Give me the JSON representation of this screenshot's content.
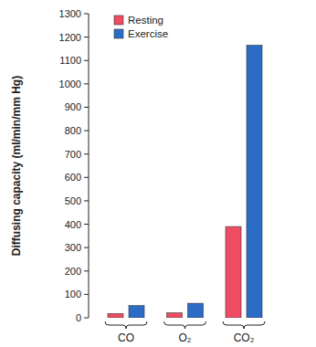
{
  "chart_data": {
    "type": "bar",
    "ylabel": "Diffusing capacity (ml/min/mm Hg)",
    "categories": [
      "CO",
      "O₂",
      "CO₂"
    ],
    "series": [
      {
        "name": "Resting",
        "color": "#ee4d63",
        "values": [
          18,
          21,
          390
        ]
      },
      {
        "name": "Exercise",
        "color": "#2b6cc7",
        "values": [
          52,
          62,
          1165
        ]
      }
    ],
    "ylim": [
      0,
      1300
    ],
    "yticks": [
      0,
      100,
      200,
      300,
      400,
      500,
      600,
      700,
      800,
      900,
      1000,
      1100,
      1200,
      1300
    ],
    "legend": "upper left"
  }
}
